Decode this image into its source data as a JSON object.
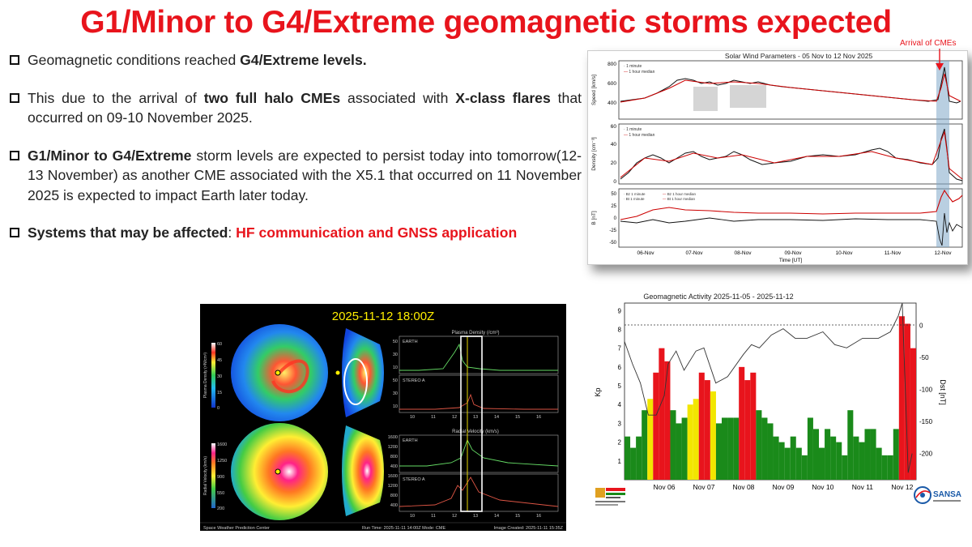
{
  "slide": {
    "title": "G1/Minor  to G4/Extreme geomagnetic storms expected",
    "bullets": [
      {
        "parts": [
          {
            "t": "Geomagnetic conditions reached ",
            "s": "n"
          },
          {
            "t": "G4/Extreme levels.",
            "s": "b"
          }
        ]
      },
      {
        "parts": [
          {
            "t": "This due to the arrival of ",
            "s": "n"
          },
          {
            "t": "two full halo CMEs",
            "s": "b"
          },
          {
            "t": " associated with ",
            "s": "n"
          },
          {
            "t": "X-class flares",
            "s": "b"
          },
          {
            "t": " that occurred on 09-10 November 2025.",
            "s": "n"
          }
        ]
      },
      {
        "parts": [
          {
            "t": "G1/Minor to G4/Extreme",
            "s": "b"
          },
          {
            "t": " storm levels are expected to persist  today into tomorrow(12-13 November) as another CME associated with the X5.1 that occurred on 11 November 2025 is expected to impact Earth later today.",
            "s": "n"
          }
        ]
      },
      {
        "parts": [
          {
            "t": "Systems that may be affected",
            "s": "b"
          },
          {
            "t": ": ",
            "s": "n"
          },
          {
            "t": "HF communication and GNSS application",
            "s": "r"
          }
        ]
      }
    ]
  },
  "solar_wind": {
    "title": "Solar Wind Parameters - 05 Nov to 12 Nov 2025",
    "annotation": "Arrival of CMEs",
    "panels": [
      {
        "ylabel": "Speed [km/s]",
        "ticks": [
          "800",
          "600",
          "400"
        ],
        "legend": [
          "1 minute",
          "1 hour median"
        ]
      },
      {
        "ylabel": "Density [cm⁻³]",
        "ticks": [
          "60",
          "40",
          "20",
          "0"
        ],
        "legend": [
          "1 minute",
          "1 hour median"
        ]
      },
      {
        "ylabel": "B [nT]",
        "ticks": [
          "50",
          "25",
          "0",
          "-25",
          "-50"
        ],
        "legend": [
          "Bz 1 minute",
          "Bt 1 minute",
          "Bz 1 hour median",
          "Bt 1 hour median"
        ]
      }
    ],
    "xticks": [
      "06-Nov",
      "07-Nov",
      "08-Nov",
      "09-Nov",
      "10-Nov",
      "11-Nov",
      "12-Nov"
    ],
    "xlabel": "Time [UT]"
  },
  "enlil": {
    "timestamp": "2025-11-12 18:00Z",
    "density_panel_title": "Plasma Density (/cm³)",
    "velocity_panel_title": "Radial Velocity (km/s)",
    "earth_label": "EARTH",
    "stereo_label": "STEREO A",
    "density_cbar_label": "Plasma Density (r²N/cm³)",
    "velocity_cbar_label": "Radial Velocity (km/s)",
    "density_cbar_ticks": [
      "60",
      "45",
      "30",
      "15",
      "0"
    ],
    "velocity_cbar_ticks": [
      "1600",
      "1250",
      "900",
      "550",
      "200"
    ],
    "density_yticks": [
      "50",
      "30",
      "10"
    ],
    "velocity_yticks": [
      "1600",
      "1200",
      "800",
      "400"
    ],
    "xticks": [
      "10",
      "11",
      "12",
      "13",
      "14",
      "15",
      "16"
    ],
    "footer_left": "Space Weather Prediction Center",
    "footer_mid": "Run Time: 2025-11-11 14:00Z   Mode: CME",
    "footer_right": "Image Created: 2025-11-11 15:35Z"
  },
  "geomagnetic": {
    "title": "Geomagnetic Activity    2025-11-05 - 2025-11-12",
    "kp_label": "Kp",
    "dst_label": "Dst [nT]",
    "kp_ticks": [
      "1",
      "2",
      "3",
      "4",
      "5",
      "6",
      "7",
      "8",
      "9"
    ],
    "dst_ticks": [
      "0",
      "-50",
      "-100",
      "-150",
      "-200"
    ],
    "xticks": [
      "Nov 06",
      "Nov 07",
      "Nov 08",
      "Nov 09",
      "Nov 10",
      "Nov 11",
      "Nov 12"
    ],
    "colors": {
      "quiet": "#1a8a1a",
      "active": "#f2e600",
      "storm": "#e8141c"
    }
  },
  "logos": {
    "right": "SANSA"
  },
  "chart_data": [
    {
      "type": "bar",
      "title": "Geomagnetic Activity    2025-11-05 - 2025-11-12",
      "ylabel": "Kp",
      "ylim": [
        0,
        9
      ],
      "values": [
        2.3,
        1.7,
        2.3,
        3.7,
        4.3,
        5.7,
        7.0,
        6.3,
        3.7,
        3.0,
        3.3,
        4.0,
        4.3,
        5.7,
        5.3,
        4.7,
        3.0,
        3.3,
        3.3,
        3.3,
        6.0,
        5.3,
        5.7,
        3.7,
        3.3,
        3.0,
        2.3,
        2.0,
        1.7,
        2.3,
        1.7,
        1.3,
        3.3,
        2.7,
        1.7,
        2.7,
        2.3,
        2.0,
        1.3,
        3.7,
        2.3,
        2.0,
        2.7,
        2.7,
        1.7,
        1.3,
        1.3,
        2.7,
        8.7,
        8.3,
        7.0
      ]
    },
    {
      "type": "line",
      "title": "Geomagnetic Activity    2025-11-05 - 2025-11-12",
      "ylabel": "Dst [nT]",
      "ylim": [
        -230,
        35
      ],
      "x": [
        0,
        0.2,
        0.4,
        0.6,
        0.8,
        1.0,
        1.1,
        1.3,
        1.5,
        1.8,
        2.0,
        2.3,
        2.6,
        3.0,
        3.2,
        3.4,
        3.7,
        4.0,
        4.3,
        4.6,
        5.0,
        5.3,
        5.6,
        6.0,
        6.4,
        6.7,
        6.9,
        7.0,
        7.1,
        7.15,
        7.25
      ],
      "values": [
        -25,
        -60,
        -90,
        -140,
        -140,
        -110,
        -60,
        -40,
        -70,
        -40,
        -35,
        -90,
        -80,
        -45,
        -30,
        -35,
        -15,
        -5,
        -20,
        -20,
        -10,
        -30,
        -35,
        -20,
        -20,
        -10,
        15,
        35,
        -140,
        -230,
        -200
      ]
    }
  ]
}
